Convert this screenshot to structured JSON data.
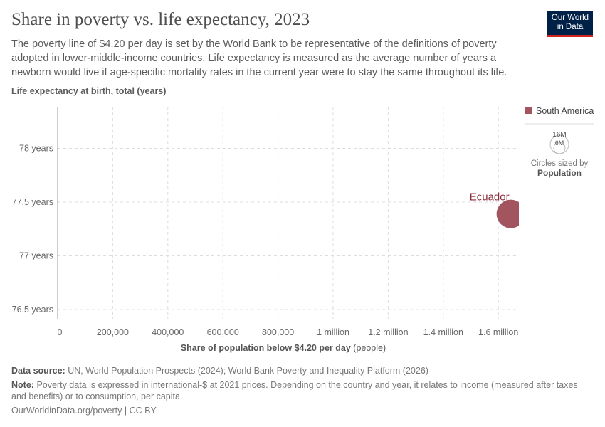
{
  "title": "Share in poverty vs. life expectancy, 2023",
  "subtitle": "The poverty line of $4.20 per day is set by the World Bank to be representative of the definitions of poverty adopted in lower-middle-income countries. Life expectancy is measured as the average number of years a newborn would live if age-specific mortality rates in the current year were to stay the same throughout its life.",
  "logo": {
    "line1": "Our World",
    "line2": "in Data"
  },
  "legend": {
    "entry": "South America",
    "color": "#a2555f",
    "size_large": "16M",
    "size_small": "6M",
    "sized_by": "Circles sized by",
    "sized_var": "Population"
  },
  "chart_data": {
    "type": "scatter",
    "ylabel": "Life expectancy at birth, total (years)",
    "xlabel": "Share of population below $4.20 per day",
    "xlabel_unit": "(people)",
    "xlim": [
      0,
      1640000
    ],
    "ylim": [
      76.35,
      78.4
    ],
    "x_ticks": [
      {
        "v": 0,
        "label": "0"
      },
      {
        "v": 200000,
        "label": "200,000"
      },
      {
        "v": 400000,
        "label": "400,000"
      },
      {
        "v": 600000,
        "label": "600,000"
      },
      {
        "v": 800000,
        "label": "800,000"
      },
      {
        "v": 1000000,
        "label": "1 million"
      },
      {
        "v": 1200000,
        "label": "1.2 million"
      },
      {
        "v": 1400000,
        "label": "1.4 million"
      },
      {
        "v": 1600000,
        "label": "1.6 million"
      }
    ],
    "y_ticks": [
      {
        "v": 76.5,
        "label": "76.5 years"
      },
      {
        "v": 77,
        "label": "77 years"
      },
      {
        "v": 77.5,
        "label": "77.5 years"
      },
      {
        "v": 78,
        "label": "78 years"
      }
    ],
    "grid": true,
    "legend_position": "right",
    "points": [
      {
        "name": "Ecuador",
        "x": 1645000,
        "y": 77.39,
        "population": 18000000,
        "region": "South America"
      }
    ]
  },
  "footer": {
    "source_label": "Data source:",
    "source": "UN, World Population Prospects (2024); World Bank Poverty and Inequality Platform (2026)",
    "note_label": "Note:",
    "note": "Poverty data is expressed in international-$ at 2021 prices. Depending on the country and year, it relates to income (measured after taxes and benefits) or to consumption, per capita.",
    "url": "OurWorldinData.org/poverty | CC BY"
  }
}
